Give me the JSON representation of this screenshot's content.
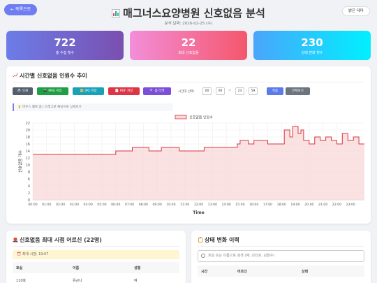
{
  "header": {
    "back_label": "← 목록으로",
    "title": "매그너스요양병원 신호없음 분석",
    "date_label": "분석 날짜: 2026-02-25 (수)",
    "theme_label": "밝은 테마"
  },
  "stats": [
    {
      "value": "722",
      "label": "총 수집 횟수"
    },
    {
      "value": "22",
      "label": "최대 신호없음"
    },
    {
      "value": "230",
      "label": "상태 변화 횟수"
    }
  ],
  "chart_section": {
    "title": "시간별 신호없음 인원수 추이",
    "buttons": [
      "🖨️ 인쇄",
      "📷 PNG 저장",
      "🖼️ JPG 저장",
      "📄 PDF 저장",
      "🔍 줌 리셋"
    ],
    "time_select_label": "시간대 선택:",
    "start_hour": "00",
    "start_min": "00",
    "range_sep": "~",
    "end_hour": "23",
    "end_min": "59",
    "apply_label": "적용",
    "all_label": "전체보기",
    "hint": "💡 마우스 휠로 줌 | 드래그로 패닝으로 상세보기"
  },
  "colors": {
    "line": "#d9363e",
    "fill": "#f9d9db",
    "btn_print": "#555e6b",
    "btn_png": "#1f9f44",
    "btn_jpg": "#17a2b8",
    "btn_pdf": "#dc3545",
    "btn_zoom": "#7b4fd8",
    "btn_apply": "#5b7be9",
    "btn_all": "#6c757d"
  },
  "chart_data": {
    "type": "line",
    "legend": "신호없음 인원수",
    "legend_position": "top-center",
    "xlabel": "Time",
    "ylabel": "신호없음 개수",
    "ylim": [
      0,
      22
    ],
    "yticks": [
      0,
      2,
      4,
      6,
      8,
      10,
      12,
      14,
      16,
      18,
      20,
      22
    ],
    "xticks": [
      "00:00",
      "01:00",
      "02:00",
      "03:00",
      "04:00",
      "05:00",
      "06:00",
      "07:00",
      "08:00",
      "09:00",
      "10:00",
      "11:00",
      "12:00",
      "13:00",
      "14:00",
      "15:00",
      "16:00",
      "17:00",
      "18:00",
      "19:00",
      "20:00",
      "21:00",
      "22:00",
      "23:00"
    ],
    "grid": true,
    "series": [
      {
        "name": "신호없음 인원수",
        "x": [
          0,
          5.8,
          6.0,
          7.0,
          7.2,
          8.2,
          8.4,
          9.0,
          9.3,
          10.4,
          10.6,
          12.0,
          12.4,
          13.0,
          14.8,
          15.0,
          15.6,
          16.0,
          16.8,
          17.0,
          18.0,
          18.2,
          18.6,
          18.8,
          19.2,
          19.4,
          19.6,
          20.0,
          20.4,
          20.8,
          21.2,
          21.6,
          22.0,
          22.4,
          22.8,
          23.2,
          23.6,
          24.0
        ],
        "y": [
          13,
          13,
          14,
          14,
          15,
          15,
          14,
          14,
          15,
          15,
          14,
          14,
          15,
          15,
          16,
          17,
          16,
          17,
          17,
          16,
          16,
          20,
          18,
          21,
          19,
          20,
          17,
          16,
          18,
          17,
          18,
          17,
          16,
          19,
          17,
          18,
          16,
          16
        ]
      }
    ]
  },
  "left_panel": {
    "title": "신호없음 최대 시점 어르신 (22명)",
    "max_time": "⏰ 최대 시점: 19:07",
    "columns": [
      "호실",
      "이름",
      "성별"
    ],
    "first_row": [
      "110호",
      "유근나",
      "여"
    ]
  },
  "right_panel": {
    "title": "상태 변화 이력",
    "search_placeholder": "호실 또는 이름으로 검색 (예: 201호, 김철수)",
    "columns": [
      "시간",
      "어르신",
      "상태"
    ]
  }
}
